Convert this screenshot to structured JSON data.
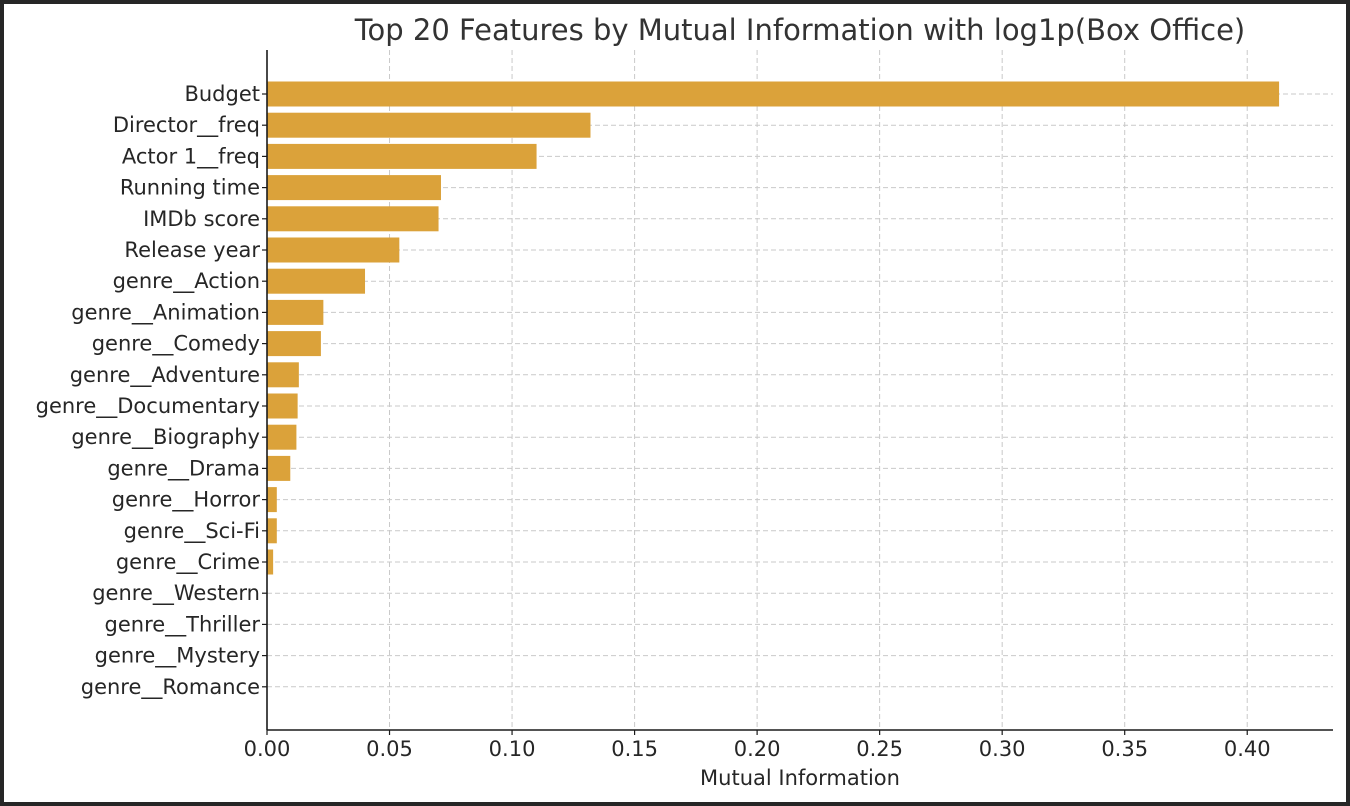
{
  "chart_data": {
    "type": "bar",
    "orientation": "horizontal",
    "title": "Top 20 Features by Mutual Information with log1p(Box Office)",
    "xlabel": "Mutual Information",
    "ylabel": "",
    "xlim": [
      0,
      0.435
    ],
    "xticks": [
      "0.00",
      "0.05",
      "0.10",
      "0.15",
      "0.20",
      "0.25",
      "0.30",
      "0.35",
      "0.40"
    ],
    "xtick_values": [
      0,
      0.05,
      0.1,
      0.15,
      0.2,
      0.25,
      0.3,
      0.35,
      0.4
    ],
    "grid": true,
    "bar_color": "#dba23a",
    "categories": [
      "Budget",
      "Director__freq",
      "Actor 1__freq",
      "Running time",
      "IMDb score",
      "Release year",
      "genre__Action",
      "genre__Animation",
      "genre__Comedy",
      "genre__Adventure",
      "genre__Documentary",
      "genre__Biography",
      "genre__Drama",
      "genre__Horror",
      "genre__Sci-Fi",
      "genre__Crime",
      "genre__Western",
      "genre__Thriller",
      "genre__Mystery",
      "genre__Romance"
    ],
    "values": [
      0.413,
      0.132,
      0.11,
      0.071,
      0.07,
      0.054,
      0.04,
      0.023,
      0.022,
      0.013,
      0.0125,
      0.012,
      0.0095,
      0.004,
      0.004,
      0.0025,
      0,
      0,
      0,
      0
    ]
  }
}
